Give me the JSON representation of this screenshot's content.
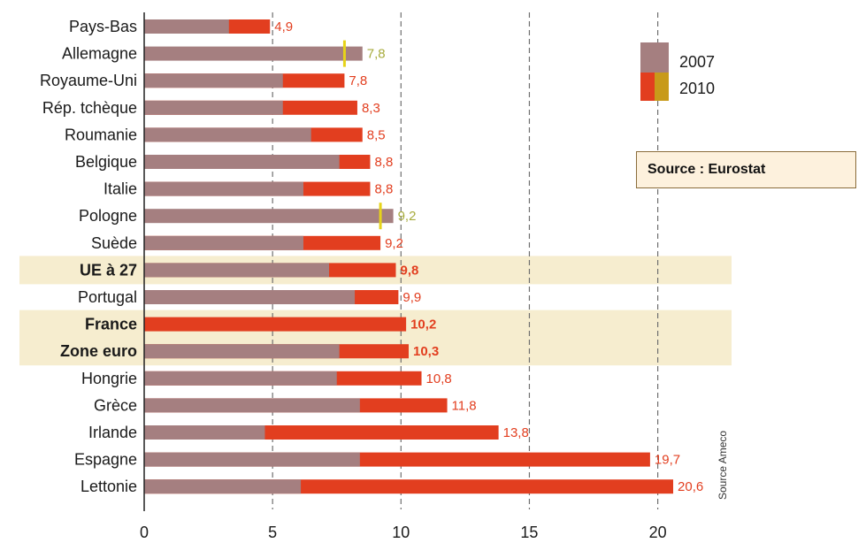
{
  "chart_data": {
    "type": "bar",
    "orientation": "horizontal",
    "categories": [
      "Pays-Bas",
      "Allemagne",
      "Royaume-Uni",
      "Rép. tchèque",
      "Roumanie",
      "Belgique",
      "Italie",
      "Pologne",
      "Suède",
      "UE à 27",
      "Portugal",
      "France",
      "Zone euro",
      "Hongrie",
      "Grèce",
      "Irlande",
      "Espagne",
      "Lettonie"
    ],
    "series": [
      {
        "name": "2007",
        "values": [
          3.3,
          8.5,
          5.4,
          5.4,
          6.5,
          7.6,
          6.2,
          9.7,
          6.2,
          7.2,
          8.2,
          0,
          7.6,
          7.5,
          8.4,
          4.7,
          8.4,
          6.1
        ]
      },
      {
        "name": "2010",
        "values": [
          4.9,
          7.8,
          7.8,
          8.3,
          8.5,
          8.8,
          8.8,
          9.2,
          9.2,
          9.8,
          9.9,
          10.2,
          10.3,
          10.8,
          11.8,
          13.8,
          19.7,
          20.6
        ]
      }
    ],
    "value_labels": [
      "4,9",
      "7,8",
      "7,8",
      "8,3",
      "8,5",
      "8,8",
      "8,8",
      "9,2",
      "9,2",
      "9,8",
      "9,9",
      "10,2",
      "10,3",
      "10,8",
      "11,8",
      "13,8",
      "19,7",
      "20,6"
    ],
    "highlighted_categories": [
      "UE à 27",
      "France",
      "Zone euro"
    ],
    "lower_than_2007_categories": [
      "Allemagne",
      "Pologne"
    ],
    "xlim": [
      0,
      22
    ],
    "xticks": [
      0,
      5,
      10,
      15,
      20
    ],
    "grid": "dashed vertical at 5, 10, 15, 20",
    "legend": {
      "placement": "top-right",
      "items": [
        {
          "label": "2007",
          "colors": [
            "#a57f80"
          ]
        },
        {
          "label": "2010",
          "colors": [
            "#e23e1f",
            "#c89a1a"
          ]
        }
      ]
    },
    "annotations": {
      "source_box": "Source : Eurostat",
      "rotated_source": "Source Ameco"
    },
    "colors": {
      "bar_2007": "#a57f80",
      "bar_2010": "#e23e1f",
      "marker_lower_2010": "#e6d31a",
      "label_red": "#e23e1f",
      "label_olive": "#a7ab3c",
      "highlight_band": "#f6edcf",
      "grid": "#6f6f6f",
      "source_box_bg": "#fdf1dd"
    }
  }
}
